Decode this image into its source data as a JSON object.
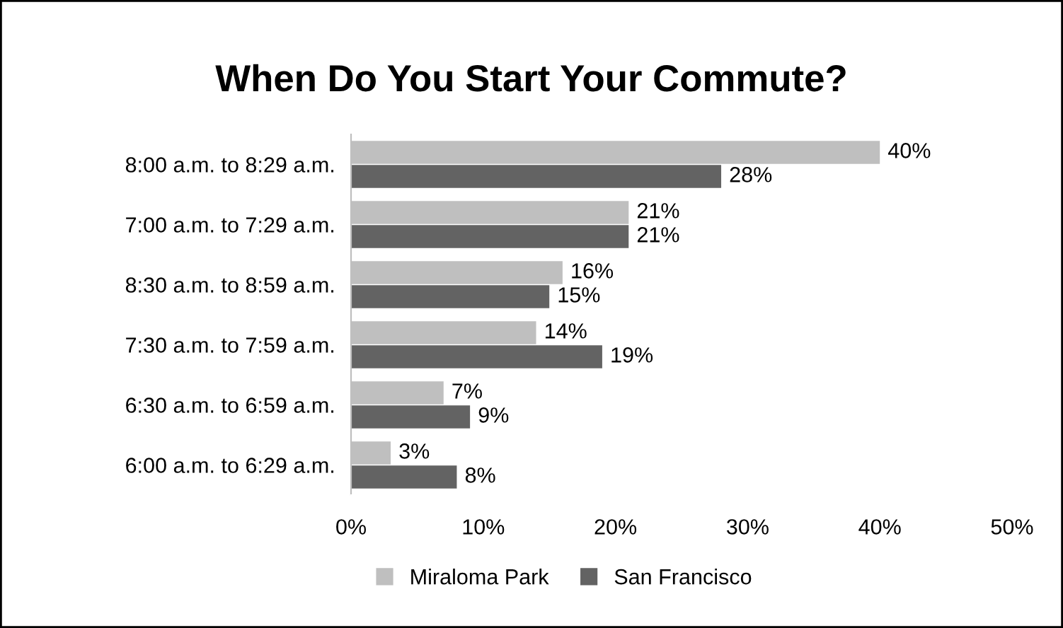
{
  "chart_data": {
    "type": "bar",
    "orientation": "horizontal",
    "title": "When Do You Start Your Commute?",
    "categories": [
      "8:00 a.m. to 8:29 a.m.",
      "7:00 a.m. to 7:29 a.m.",
      "8:30 a.m. to 8:59 a.m.",
      "7:30 a.m. to 7:59 a.m.",
      "6:30 a.m. to 6:59 a.m.",
      "6:00 a.m. to 6:29 a.m."
    ],
    "series": [
      {
        "name": "Miraloma Park",
        "color": "#bfbfbf",
        "values": [
          40,
          21,
          16,
          14,
          7,
          3
        ],
        "value_labels": [
          "40%",
          "21%",
          "16%",
          "14%",
          "7%",
          "3%"
        ]
      },
      {
        "name": "San Francisco",
        "color": "#636363",
        "values": [
          28,
          21,
          15,
          19,
          9,
          8
        ],
        "value_labels": [
          "28%",
          "21%",
          "15%",
          "19%",
          "9%",
          "8%"
        ]
      }
    ],
    "xlim": [
      0,
      50
    ],
    "xticks": [
      {
        "value": 0,
        "label": "0%"
      },
      {
        "value": 10,
        "label": "10%"
      },
      {
        "value": 20,
        "label": "20%"
      },
      {
        "value": 30,
        "label": "30%"
      },
      {
        "value": 40,
        "label": "40%"
      },
      {
        "value": 50,
        "label": "50%"
      }
    ],
    "grid": false,
    "legend": "bottom"
  }
}
